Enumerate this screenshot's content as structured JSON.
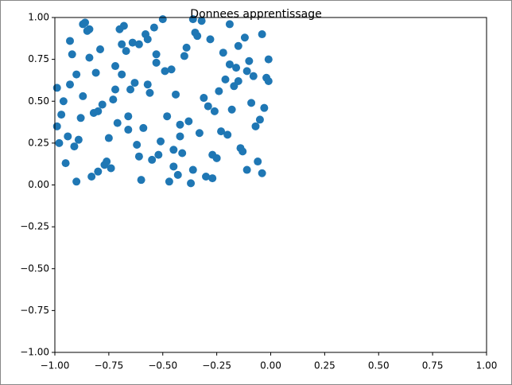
{
  "chart_data": {
    "type": "scatter",
    "title": "Donnees apprentissage",
    "color": "#1f77b4",
    "x": [
      -0.97,
      -0.12,
      -0.55,
      -0.81,
      -0.33,
      -0.68,
      -0.04,
      -0.44,
      -0.91,
      -0.22,
      -0.63,
      -0.77,
      -0.15,
      -0.38,
      -0.86,
      -0.51,
      -0.09,
      -0.72,
      -0.27,
      -0.99,
      -0.58,
      -0.41,
      -0.18,
      -0.84,
      -0.66,
      -0.02,
      -0.47,
      -0.93,
      -0.31,
      -0.75,
      -0.53,
      -0.11,
      -0.88,
      -0.36,
      -0.61,
      -0.24,
      -0.79,
      -0.07,
      -0.49,
      -0.95,
      -0.29,
      -0.7,
      -0.14,
      -0.57,
      -0.83,
      -0.4,
      -0.05,
      -0.64,
      -0.2,
      -0.9,
      -0.45,
      -0.73,
      -0.34,
      -0.98,
      -0.16,
      -0.6,
      -0.26,
      -0.87,
      -0.52,
      -0.01,
      -0.69,
      -0.42,
      -0.8,
      -0.1,
      -0.56,
      -0.94,
      -0.32,
      -0.76,
      -0.21,
      -0.48,
      -0.85,
      -0.13,
      -0.65,
      -0.37,
      -0.92,
      -0.03,
      -0.59,
      -0.28,
      -0.74,
      -0.46,
      -0.89,
      -0.17,
      -0.54,
      -0.82,
      -0.25,
      -0.67,
      -0.08,
      -0.43,
      -0.96,
      -0.35,
      -0.71,
      -0.19,
      -0.62,
      -0.5,
      -0.87,
      -0.06,
      -0.39,
      -0.78,
      -0.23,
      -0.57,
      -0.93,
      -0.3,
      -0.66,
      -0.11,
      -0.84,
      -0.45,
      -0.01,
      -0.72,
      -0.36,
      -0.99,
      -0.53,
      -0.15,
      -0.8,
      -0.27,
      -0.61,
      -0.04,
      -0.9,
      -0.42,
      -0.69,
      -0.19
    ],
    "values": [
      0.42,
      0.88,
      0.15,
      0.67,
      0.31,
      0.95,
      0.07,
      0.54,
      0.23,
      0.79,
      0.61,
      0.12,
      0.83,
      0.38,
      0.97,
      0.26,
      0.49,
      0.71,
      0.04,
      0.58,
      0.9,
      0.19,
      0.45,
      0.76,
      0.33,
      0.64,
      0.02,
      0.86,
      0.52,
      0.28,
      0.73,
      0.09,
      0.4,
      0.99,
      0.17,
      0.56,
      0.81,
      0.35,
      0.68,
      0.13,
      0.47,
      0.93,
      0.22,
      0.6,
      0.05,
      0.77,
      0.39,
      0.85,
      0.3,
      0.66,
      0.11,
      0.51,
      0.89,
      0.25,
      0.7,
      0.03,
      0.44,
      0.96,
      0.18,
      0.62,
      0.84,
      0.36,
      0.08,
      0.74,
      0.55,
      0.29,
      0.98,
      0.14,
      0.63,
      0.41,
      0.92,
      0.2,
      0.57,
      0.01,
      0.78,
      0.46,
      0.34,
      0.87,
      0.1,
      0.69,
      0.27,
      0.59,
      0.94,
      0.43,
      0.16,
      0.8,
      0.65,
      0.06,
      0.5,
      0.91,
      0.37,
      0.72,
      0.24,
      0.99,
      0.53,
      0.14,
      0.82,
      0.48,
      0.32,
      0.87,
      0.6,
      0.05,
      0.41,
      0.68,
      0.93,
      0.21,
      0.75,
      0.57,
      0.09,
      0.35,
      0.78,
      0.62,
      0.44,
      0.18,
      0.84,
      0.9,
      0.02,
      0.29,
      0.66,
      0.96
    ],
    "xlim": [
      -1,
      1
    ],
    "ylim": [
      -1,
      1
    ],
    "xticks": [
      {
        "value": -1,
        "label": "−1.00"
      },
      {
        "value": -0.75,
        "label": "−0.75"
      },
      {
        "value": -0.5,
        "label": "−0.50"
      },
      {
        "value": -0.25,
        "label": "−0.25"
      },
      {
        "value": 0,
        "label": "0.00"
      },
      {
        "value": 0.25,
        "label": "0.25"
      },
      {
        "value": 0.5,
        "label": "0.50"
      },
      {
        "value": 0.75,
        "label": "0.75"
      },
      {
        "value": 1,
        "label": "1.00"
      }
    ],
    "yticks": [
      {
        "value": -1,
        "label": "−1.00"
      },
      {
        "value": -0.75,
        "label": "−0.75"
      },
      {
        "value": -0.5,
        "label": "−0.50"
      },
      {
        "value": -0.25,
        "label": "−0.25"
      },
      {
        "value": 0,
        "label": "0.00"
      },
      {
        "value": 0.25,
        "label": "0.25"
      },
      {
        "value": 0.5,
        "label": "0.50"
      },
      {
        "value": 0.75,
        "label": "0.75"
      },
      {
        "value": 1,
        "label": "1.00"
      }
    ]
  }
}
